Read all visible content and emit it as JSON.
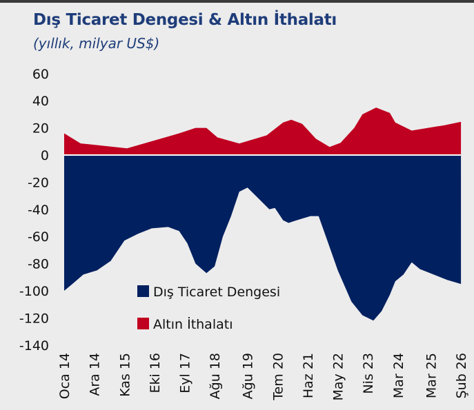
{
  "title": "Dış Ticaret Dengesi & Altın İthalatı",
  "subtitle": "(yıllık, milyar US$)",
  "chart_data": {
    "type": "area",
    "title": "Dış Ticaret Dengesi & Altın İthalatı",
    "subtitle": "(yıllık, milyar US$)",
    "xlabel": "",
    "ylabel": "",
    "ylim": [
      -140,
      60
    ],
    "yticks": [
      60,
      40,
      20,
      0,
      -20,
      -40,
      -60,
      -80,
      -100,
      -120,
      -140
    ],
    "xrange": [
      "2014-01",
      "2026-02"
    ],
    "xticks": [
      {
        "date": "2014-01",
        "label": "Oca 14"
      },
      {
        "date": "2014-12",
        "label": "Ara 14"
      },
      {
        "date": "2015-11",
        "label": "Kas 15"
      },
      {
        "date": "2016-10",
        "label": "Eki 16"
      },
      {
        "date": "2017-09",
        "label": "Eyl 17"
      },
      {
        "date": "2018-08",
        "label": "Ağu 18"
      },
      {
        "date": "2019-08",
        "label": "Ağu 19"
      },
      {
        "date": "2020-07",
        "label": "Tem 20"
      },
      {
        "date": "2021-06",
        "label": "Haz 21"
      },
      {
        "date": "2022-05",
        "label": "May 22"
      },
      {
        "date": "2023-04",
        "label": "Nis 23"
      },
      {
        "date": "2024-03",
        "label": "Mar 24"
      },
      {
        "date": "2025-03",
        "label": "Mar 25"
      },
      {
        "date": "2026-02",
        "label": "Şub 26"
      }
    ],
    "grid": false,
    "legend_position": "bottom-center",
    "series": [
      {
        "name": "Dış Ticaret Dengesi",
        "color": "#002060",
        "points": [
          [
            "2014-01",
            -100
          ],
          [
            "2014-04",
            -95
          ],
          [
            "2014-08",
            -88
          ],
          [
            "2015-01",
            -85
          ],
          [
            "2015-06",
            -78
          ],
          [
            "2015-11",
            -63
          ],
          [
            "2016-04",
            -58
          ],
          [
            "2016-09",
            -54
          ],
          [
            "2017-03",
            -53
          ],
          [
            "2017-07",
            -56
          ],
          [
            "2017-10",
            -65
          ],
          [
            "2018-01",
            -80
          ],
          [
            "2018-05",
            -87
          ],
          [
            "2018-08",
            -82
          ],
          [
            "2018-11",
            -60
          ],
          [
            "2019-02",
            -45
          ],
          [
            "2019-05",
            -27
          ],
          [
            "2019-08",
            -24
          ],
          [
            "2019-12",
            -32
          ],
          [
            "2020-04",
            -40
          ],
          [
            "2020-06",
            -39
          ],
          [
            "2020-09",
            -48
          ],
          [
            "2020-11",
            -50
          ],
          [
            "2021-02",
            -48
          ],
          [
            "2021-07",
            -45
          ],
          [
            "2021-10",
            -45
          ],
          [
            "2022-01",
            -62
          ],
          [
            "2022-05",
            -85
          ],
          [
            "2022-10",
            -108
          ],
          [
            "2023-02",
            -118
          ],
          [
            "2023-06",
            -122
          ],
          [
            "2023-09",
            -115
          ],
          [
            "2023-12",
            -103
          ],
          [
            "2024-02",
            -93
          ],
          [
            "2024-05",
            -88
          ],
          [
            "2024-08",
            -79
          ],
          [
            "2024-11",
            -84
          ],
          [
            "2025-04",
            -88
          ],
          [
            "2025-09",
            -92
          ],
          [
            "2026-02",
            -95
          ]
        ]
      },
      {
        "name": "Altın İthalatı",
        "color": "#c00020",
        "points": [
          [
            "2014-01",
            16
          ],
          [
            "2014-07",
            8.6
          ],
          [
            "2015-12",
            5
          ],
          [
            "2017-07",
            16
          ],
          [
            "2018-01",
            20
          ],
          [
            "2018-05",
            20
          ],
          [
            "2018-09",
            13
          ],
          [
            "2019-05",
            8.5
          ],
          [
            "2020-03",
            14.5
          ],
          [
            "2020-09",
            24
          ],
          [
            "2020-12",
            26
          ],
          [
            "2021-04",
            23
          ],
          [
            "2021-09",
            12
          ],
          [
            "2022-02",
            6
          ],
          [
            "2022-06",
            9
          ],
          [
            "2022-11",
            20
          ],
          [
            "2023-02",
            30
          ],
          [
            "2023-07",
            35
          ],
          [
            "2023-12",
            31
          ],
          [
            "2024-02",
            24
          ],
          [
            "2024-08",
            18
          ],
          [
            "2025-08",
            22
          ],
          [
            "2026-02",
            24.5
          ]
        ]
      }
    ]
  }
}
